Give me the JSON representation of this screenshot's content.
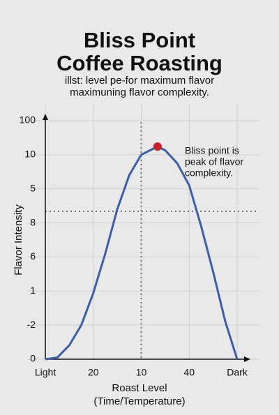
{
  "chart_data": {
    "type": "line",
    "title": [
      "Bliss Point",
      "Coffee Roasting"
    ],
    "subtitle": [
      "illst: level pe-for maximum flavor",
      "maximuning flavor complexity."
    ],
    "xlabel": [
      "Roast Level",
      "(Time/Temperature)"
    ],
    "ylabel": "Flavor Intensity",
    "x": [
      0,
      0.25,
      0.5,
      0.75,
      1,
      1.25,
      1.5,
      1.75,
      2,
      2.34,
      2.5,
      2.75,
      3,
      3.25,
      3.5,
      3.75,
      4
    ],
    "values": [
      0,
      0.05,
      0.41,
      1.0,
      1.94,
      3.1,
      4.4,
      5.4,
      6.0,
      6.24,
      6.13,
      5.75,
      5.1,
      3.9,
      2.56,
      1.12,
      0
    ],
    "color": "#3a5eab",
    "xlim": [
      0,
      4
    ],
    "xticks": [
      {
        "value": 0,
        "label": "Light"
      },
      {
        "value": 1,
        "label": "20"
      },
      {
        "value": 2,
        "label": "10"
      },
      {
        "value": 3,
        "label": "40"
      },
      {
        "value": 4,
        "label": "Dark"
      }
    ],
    "ylim": [
      0,
      7
    ],
    "yticks": [
      {
        "value": 0,
        "label": "0"
      },
      {
        "value": 1,
        "label": "-2"
      },
      {
        "value": 2,
        "label": "1"
      },
      {
        "value": 3,
        "label": "6"
      },
      {
        "value": 4,
        "label": "8"
      },
      {
        "value": 5,
        "label": "5"
      },
      {
        "value": 6,
        "label": "10"
      },
      {
        "value": 7,
        "label": "100"
      }
    ],
    "grid": true,
    "reference_x": 2,
    "reference_y": 4.34,
    "highlight": {
      "x": 2.34,
      "y": 6.24,
      "color": "#cc1f2a"
    },
    "annotation": [
      "Bliss point is",
      "peak of flavor",
      "complexity."
    ]
  }
}
